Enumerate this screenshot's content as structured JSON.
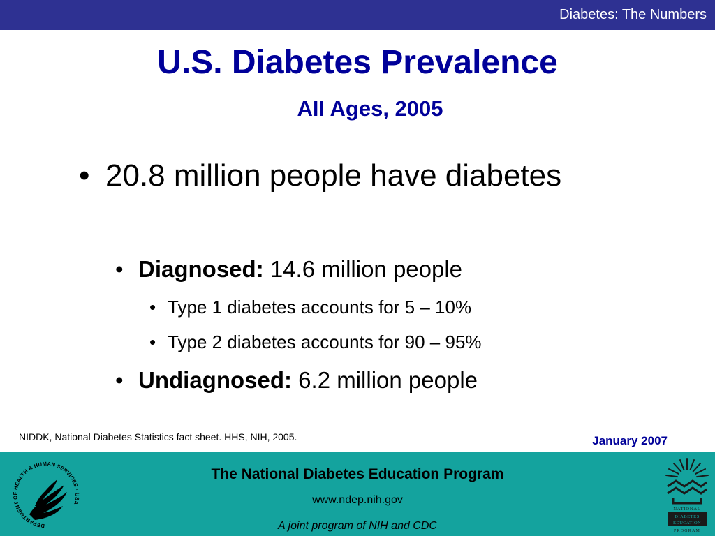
{
  "header": {
    "label": "Diabetes: The Numbers"
  },
  "slide": {
    "title": "U.S. Diabetes Prevalence",
    "subtitle": "All Ages, 2005",
    "bullet_char": "•",
    "bullets": [
      {
        "text": "20.8 million people have diabetes"
      },
      {
        "bold": "Diagnosed:",
        "text": " 14.6 million people"
      },
      {
        "text": "Type 1 diabetes accounts for 5 – 10%"
      },
      {
        "text": "Type 2 diabetes accounts for 90 – 95%"
      },
      {
        "bold": "Undiagnosed:",
        "text": " 6.2 million people"
      }
    ],
    "source": "NIDDK, National Diabetes Statistics fact sheet. HHS, NIH, 2005.",
    "date": "January 2007"
  },
  "footer": {
    "org": "The National Diabetes Education Program",
    "url": "www.ndep.nih.gov",
    "joint": "A joint program of NIH and CDC",
    "hhs_seal_text": "DEPARTMENT OF HEALTH & HUMAN SERVICES · USA",
    "ndep_logo_text": [
      "NATIONAL",
      "DIABETES",
      "EDUCATION",
      "PROGRAM"
    ]
  },
  "colors": {
    "top_bar": "#2e3192",
    "title": "#000099",
    "footer": "#14a39e"
  },
  "icons": {
    "hhs_logo": "hhs-eagle-seal-icon",
    "ndep_logo": "ndep-sunburst-icon"
  }
}
